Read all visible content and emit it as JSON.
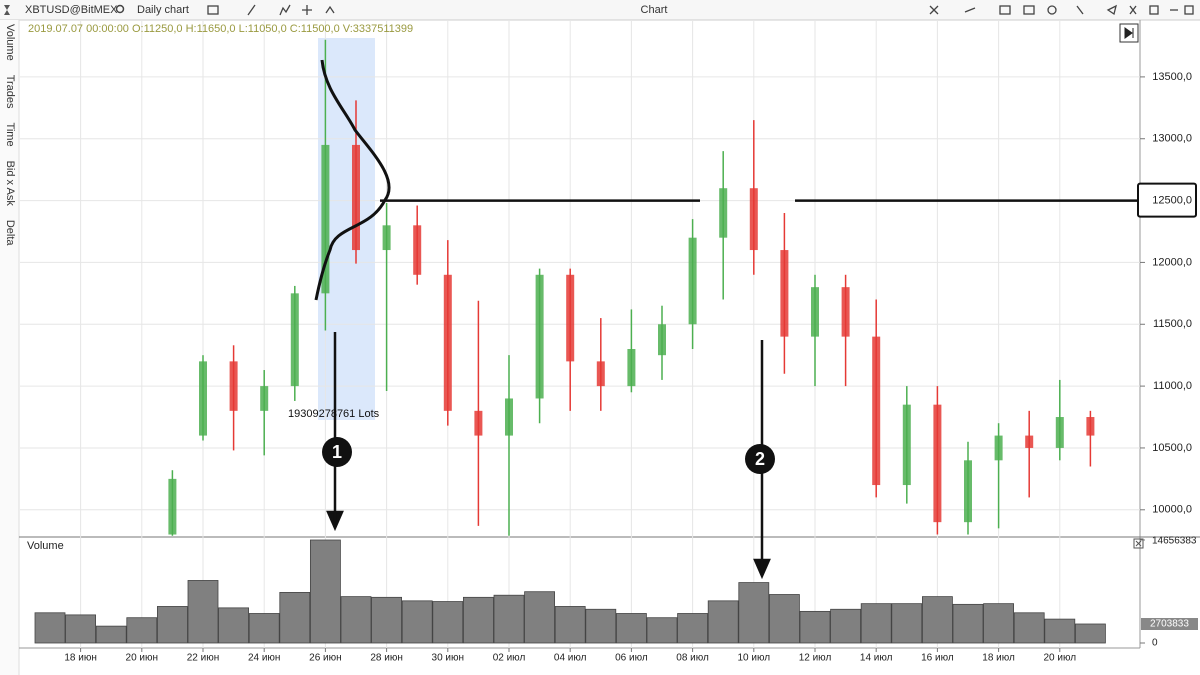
{
  "toolbar": {
    "symbol": "XBTUSD@BitMEX",
    "timeframe": "Daily chart",
    "window_title": "Chart"
  },
  "side_panel": [
    "Volume",
    "Trades",
    "Time",
    "Bid x Ask",
    "Delta"
  ],
  "chart_data": [
    {
      "type": "candlestick",
      "info_line": "2019.07.07 00:00:00 O:11250,0 H:11650,0 L:11050,0 C:11500,0 V:3337511399",
      "open": [
        null,
        null,
        null,
        null,
        9800,
        10600,
        11200,
        10800,
        11000,
        11750,
        12950,
        12100,
        12300,
        11900,
        10800,
        10600,
        10900,
        11900,
        11200,
        11000,
        11250,
        11500,
        12200,
        12600,
        12100,
        11400,
        11800,
        11400,
        10200,
        10850,
        9900,
        10400,
        10600,
        10500,
        10750
      ],
      "high": [
        null,
        null,
        null,
        null,
        10320,
        11250,
        11330,
        11130,
        11810,
        13800,
        13310,
        12480,
        12460,
        12180,
        11690,
        11250,
        11950,
        11950,
        11550,
        11620,
        11650,
        12350,
        12900,
        13150,
        12400,
        11900,
        11900,
        11700,
        11000,
        11000,
        10550,
        10700,
        10800,
        11050,
        10800
      ],
      "low": [
        null,
        null,
        null,
        null,
        9790,
        10560,
        10480,
        10440,
        10880,
        11450,
        11990,
        10960,
        11820,
        10680,
        9870,
        9790,
        10700,
        10800,
        10800,
        10950,
        11050,
        11300,
        11700,
        11900,
        11100,
        11000,
        11000,
        10100,
        10050,
        9800,
        9800,
        9850,
        10100,
        10400,
        10350
      ],
      "close": [
        null,
        null,
        null,
        null,
        10250,
        11200,
        10800,
        11000,
        11750,
        12950,
        12100,
        12300,
        11900,
        10800,
        10600,
        10900,
        11900,
        11200,
        11000,
        11300,
        11500,
        12200,
        12600,
        12100,
        11400,
        11800,
        11400,
        10200,
        10850,
        9900,
        10400,
        10600,
        10500,
        10750,
        10600
      ],
      "up_color": "#4caf50",
      "down_color": "#e53935",
      "ylim": [
        9780,
        13960
      ],
      "yticks": [
        {
          "value": 10000,
          "label": "10000,0"
        },
        {
          "value": 10500,
          "label": "10500,0"
        },
        {
          "value": 11000,
          "label": "11000,0"
        },
        {
          "value": 11500,
          "label": "11500,0"
        },
        {
          "value": 12000,
          "label": "12000,0"
        },
        {
          "value": 12500,
          "label": "12500,0"
        },
        {
          "value": 13000,
          "label": "13000,0"
        },
        {
          "value": 13500,
          "label": "13500,0"
        }
      ],
      "grid": true,
      "hline": 12500,
      "total_label": "19309278761 Lots",
      "annotations": [
        "1",
        "2"
      ]
    },
    {
      "type": "bar",
      "title": "Volume",
      "categories": [
        null,
        "18 июн",
        null,
        "20 июн",
        null,
        "22 июн",
        null,
        "24 июн",
        null,
        "26 июн",
        null,
        "28 июн",
        null,
        "30 июн",
        null,
        "02 июл",
        null,
        "04 июл",
        null,
        "06 июл",
        null,
        "08 июл",
        null,
        "10 июл",
        null,
        "12 июл",
        null,
        "14 июл",
        null,
        "16 июл",
        null,
        "18 июл",
        null,
        "20 июл",
        null
      ],
      "values": [
        4300000,
        4000000,
        2400000,
        3600000,
        5200000,
        8900000,
        5000000,
        4200000,
        7200000,
        14656383,
        6600000,
        6500000,
        6000000,
        5900000,
        6500000,
        6800000,
        7300000,
        5200000,
        4800000,
        4200000,
        3600000,
        4200000,
        6000000,
        8600000,
        6900000,
        4500000,
        4800000,
        5600000,
        5600000,
        6600000,
        5500000,
        5600000,
        4300000,
        3400000,
        2703833
      ],
      "color": "#808080",
      "ylim": [
        0,
        14656383
      ],
      "yticks": [
        0,
        14656383
      ]
    }
  ]
}
